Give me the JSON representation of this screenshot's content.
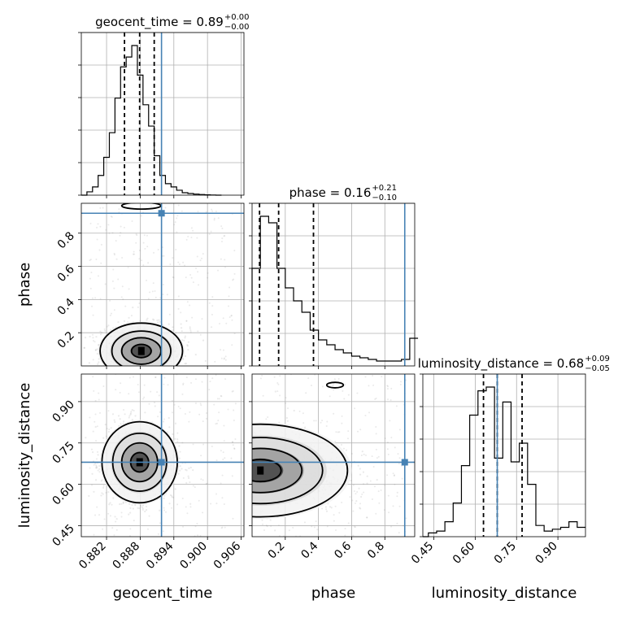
{
  "chart_data": {
    "type": "corner",
    "parameters": [
      "geocent_time",
      "phase",
      "luminosity_distance"
    ],
    "axis_labels": {
      "x": [
        "geocent_time",
        "phase",
        "luminosity_distance"
      ],
      "y": [
        "",
        "phase",
        "luminosity_distance"
      ]
    },
    "ranges": {
      "geocent_time": [
        0.8775,
        0.9065
      ],
      "phase": [
        0.0,
        0.98
      ],
      "luminosity_distance": [
        0.41,
        1.0
      ]
    },
    "ticks": {
      "geocent_time": [
        0.882,
        0.888,
        0.894,
        0.9,
        0.906
      ],
      "phase": [
        0.2,
        0.4,
        0.6,
        0.8
      ],
      "phase_y": [
        0.2,
        0.4,
        0.6,
        0.8
      ],
      "luminosity_distance": [
        0.45,
        0.6,
        0.75,
        0.9
      ]
    },
    "tick_labels": {
      "geocent_time": [
        "0.882",
        "0.888",
        "0.894",
        "0.900",
        "0.906"
      ],
      "phase": [
        "0.2",
        "0.4",
        "0.6",
        "0.8"
      ],
      "luminosity_distance": [
        "0.45",
        "0.60",
        "0.75",
        "0.90"
      ]
    },
    "titles": [
      {
        "param": "geocent_time",
        "main": "geocent_time = 0.89",
        "sup": "+0.00",
        "sub": "−0.00"
      },
      {
        "param": "phase",
        "main": "phase = 0.16",
        "sup": "+0.21",
        "sub": "−0.10"
      },
      {
        "param": "luminosity_distance",
        "main": "luminosity_distance = 0.68",
        "sup": "+0.09",
        "sub": "−0.05"
      }
    ],
    "truths": {
      "geocent_time": 0.8918,
      "phase": 0.92,
      "luminosity_distance": 0.68
    },
    "quantiles": {
      "geocent_time": [
        0.8852,
        0.8879,
        0.8905
      ],
      "phase": [
        0.045,
        0.16,
        0.37
      ],
      "luminosity_distance": [
        0.63,
        0.68,
        0.77
      ]
    },
    "histograms": {
      "geocent_time": {
        "edges": [
          0.8775,
          0.8785,
          0.8795,
          0.8805,
          0.8815,
          0.8825,
          0.8835,
          0.8845,
          0.8855,
          0.8865,
          0.8875,
          0.8885,
          0.8895,
          0.8905,
          0.8915,
          0.8925,
          0.8935,
          0.8945,
          0.8955,
          0.8965,
          0.8975,
          0.8985,
          0.8995,
          0.9005,
          0.9015,
          0.9025
        ],
        "counts": [
          0,
          2,
          5,
          12,
          23,
          38,
          59,
          78,
          84,
          91,
          73,
          55,
          42,
          24,
          12,
          7,
          5,
          3,
          1.5,
          1,
          0.6,
          0.4,
          0.2,
          0.1,
          0
        ]
      },
      "phase": {
        "edges": [
          0.0,
          0.05,
          0.1,
          0.15,
          0.2,
          0.25,
          0.3,
          0.35,
          0.4,
          0.45,
          0.5,
          0.55,
          0.6,
          0.65,
          0.7,
          0.75,
          0.8,
          0.85,
          0.9,
          0.95,
          1.0
        ],
        "counts": [
          60,
          92,
          88,
          60,
          48,
          40,
          33,
          22,
          16,
          13,
          10,
          8,
          6,
          5,
          4,
          3,
          3,
          3,
          4,
          17
        ]
      },
      "luminosity_distance": {
        "edges": [
          0.41,
          0.43,
          0.46,
          0.49,
          0.52,
          0.55,
          0.58,
          0.61,
          0.64,
          0.67,
          0.7,
          0.73,
          0.76,
          0.79,
          0.82,
          0.85,
          0.88,
          0.91,
          0.94,
          0.97,
          1.0
        ],
        "counts": [
          0,
          2,
          3,
          8,
          18,
          38,
          65,
          78,
          80,
          42,
          72,
          40,
          50,
          28,
          6,
          3,
          4,
          5,
          8,
          5
        ]
      }
    },
    "contours_2d": [
      {
        "pair": [
          "geocent_time",
          "phase"
        ],
        "center": [
          0.8882,
          0.09
        ],
        "spread": [
          0.0035,
          0.08
        ],
        "extra_blob": {
          "center": [
            0.8882,
            0.965
          ],
          "spread": [
            0.0035,
            0.02
          ]
        }
      },
      {
        "pair": [
          "geocent_time",
          "luminosity_distance"
        ],
        "center": [
          0.8879,
          0.68
        ],
        "spread": [
          0.0032,
          0.07
        ]
      },
      {
        "pair": [
          "phase",
          "luminosity_distance"
        ],
        "center": [
          0.05,
          0.65
        ],
        "spread": [
          0.25,
          0.08
        ],
        "extra_blob": {
          "center": [
            0.5,
            0.96
          ],
          "spread": [
            0.05,
            0.01
          ]
        }
      }
    ]
  }
}
